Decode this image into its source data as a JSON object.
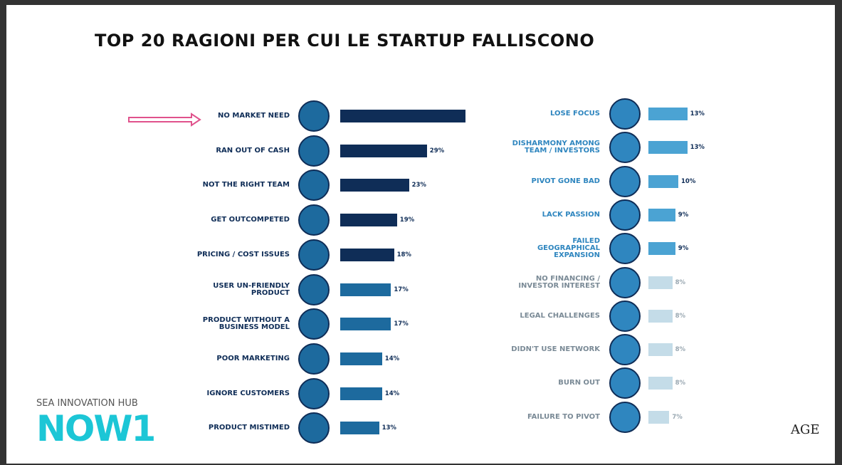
{
  "title": "TOP 20 RAGIONI PER CUI LE STARTUP FALLISCONO",
  "logo": {
    "line1": "SEA INNOVATION HUB",
    "line2": "NOW1"
  },
  "brand": "AGE",
  "chart_data": [
    {
      "type": "hbar",
      "categories": [
        "NO MARKET NEED",
        "RAN OUT OF CASH",
        "NOT THE RIGHT TEAM",
        "GET OUTCOMPETED",
        "PRICING / COST ISSUES",
        "USER UN-FRIENDLY PRODUCT",
        "PRODUCT WITHOUT A BUSINESS MODEL",
        "POOR MARKETING",
        "IGNORE CUSTOMERS",
        "PRODUCT MISTIMED"
      ],
      "values": [
        42,
        29,
        23,
        19,
        18,
        17,
        17,
        14,
        14,
        13
      ],
      "value_labels": [
        null,
        "29%",
        "23%",
        "19%",
        "18%",
        "17%",
        "17%",
        "14%",
        "14%",
        "13%"
      ],
      "colors": [
        "#0f2d57",
        "#0f2d57",
        "#0f2d57",
        "#0f2d57",
        "#0f2d57",
        "#1d6a9e",
        "#1d6a9e",
        "#1d6a9e",
        "#1d6a9e",
        "#1d6a9e"
      ]
    },
    {
      "type": "hbar",
      "categories": [
        "LOSE FOCUS",
        "DISHARMONY AMONG TEAM / INVESTORS",
        "PIVOT GONE BAD",
        "LACK PASSION",
        "FAILED GEOGRAPHICAL EXPANSION",
        "NO FINANCING / INVESTOR INTEREST",
        "LEGAL CHALLENGES",
        "DIDN'T USE NETWORK",
        "BURN OUT",
        "FAILURE TO PIVOT"
      ],
      "values": [
        13,
        13,
        10,
        9,
        9,
        8,
        8,
        8,
        8,
        7
      ],
      "value_labels": [
        "13%",
        "13%",
        "10%",
        "9%",
        "9%",
        "8%",
        "8%",
        "8%",
        "8%",
        "7%"
      ],
      "colors": [
        "#4ba3d3",
        "#4ba3d3",
        "#4ba3d3",
        "#4ba3d3",
        "#4ba3d3",
        "#c4dce8",
        "#c4dce8",
        "#c4dce8",
        "#c4dce8",
        "#c4dce8"
      ]
    }
  ]
}
